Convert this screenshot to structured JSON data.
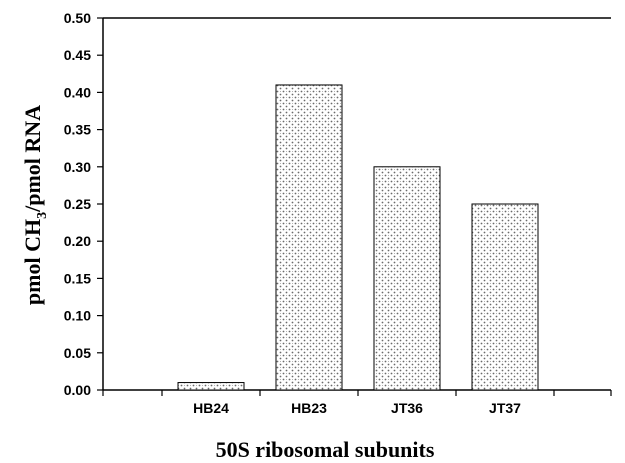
{
  "chart_data": {
    "type": "bar",
    "categories": [
      "HB24",
      "HB23",
      "JT36",
      "JT37"
    ],
    "values": [
      0.01,
      0.41,
      0.3,
      0.25
    ],
    "xlabel": "50S ribosomal subunits",
    "ylabel": {
      "prefix": "pmol CH",
      "subscript": "3",
      "suffix": "/pmol RNA"
    },
    "ylim": [
      0,
      0.5
    ],
    "yticks": [
      "0.00",
      "0.05",
      "0.10",
      "0.15",
      "0.20",
      "0.25",
      "0.30",
      "0.35",
      "0.40",
      "0.45",
      "0.50"
    ],
    "grid": false,
    "legend": "none",
    "colors": {
      "bar_fill": "#e6e6e6",
      "bar_stroke": "#000000",
      "axis": "#000000"
    }
  }
}
